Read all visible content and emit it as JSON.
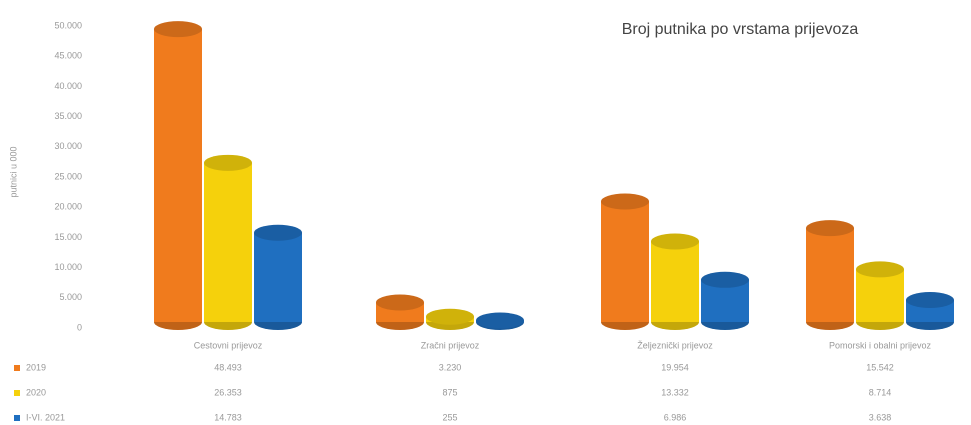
{
  "chart_data": {
    "type": "bar",
    "title": "Broj putnika po vrstama prijevoza",
    "y_label": "putnici u 000",
    "categories": [
      "Cestovni prijevoz",
      "Zračni prijevoz",
      "Željeznički prijevoz",
      "Pomorski i obalni prijevoz"
    ],
    "series": [
      {
        "name": "2019",
        "color": "#f07b1d",
        "values": [
          48493,
          3230,
          19954,
          15542
        ],
        "value_labels": [
          "48.493",
          "3.230",
          "19.954",
          "15.542"
        ]
      },
      {
        "name": "2020",
        "color": "#f5d10c",
        "values": [
          26353,
          875,
          13332,
          8714
        ],
        "value_labels": [
          "26.353",
          "875",
          "13.332",
          "8.714"
        ]
      },
      {
        "name": "I-VI. 2021",
        "color": "#1f6fc0",
        "values": [
          14783,
          255,
          6986,
          3638
        ],
        "value_labels": [
          "14.783",
          "255",
          "6.986",
          "3.638"
        ]
      }
    ],
    "ylim": [
      0,
      50000
    ],
    "yticks": [
      0,
      {
        "value": 5000,
        "label": "5.000"
      },
      {
        "value": 10000,
        "label": "10.000"
      },
      {
        "value": 15000,
        "label": "15.000"
      },
      {
        "value": 20000,
        "label": "20.000"
      },
      {
        "value": 25000,
        "label": "25.000"
      },
      {
        "value": 30000,
        "label": "30.000"
      },
      {
        "value": 35000,
        "label": "35.000"
      },
      {
        "value": 40000,
        "label": "40.000"
      },
      {
        "value": 45000,
        "label": "45.000"
      },
      {
        "value": 50000,
        "label": "50.000"
      }
    ],
    "grid": false
  }
}
